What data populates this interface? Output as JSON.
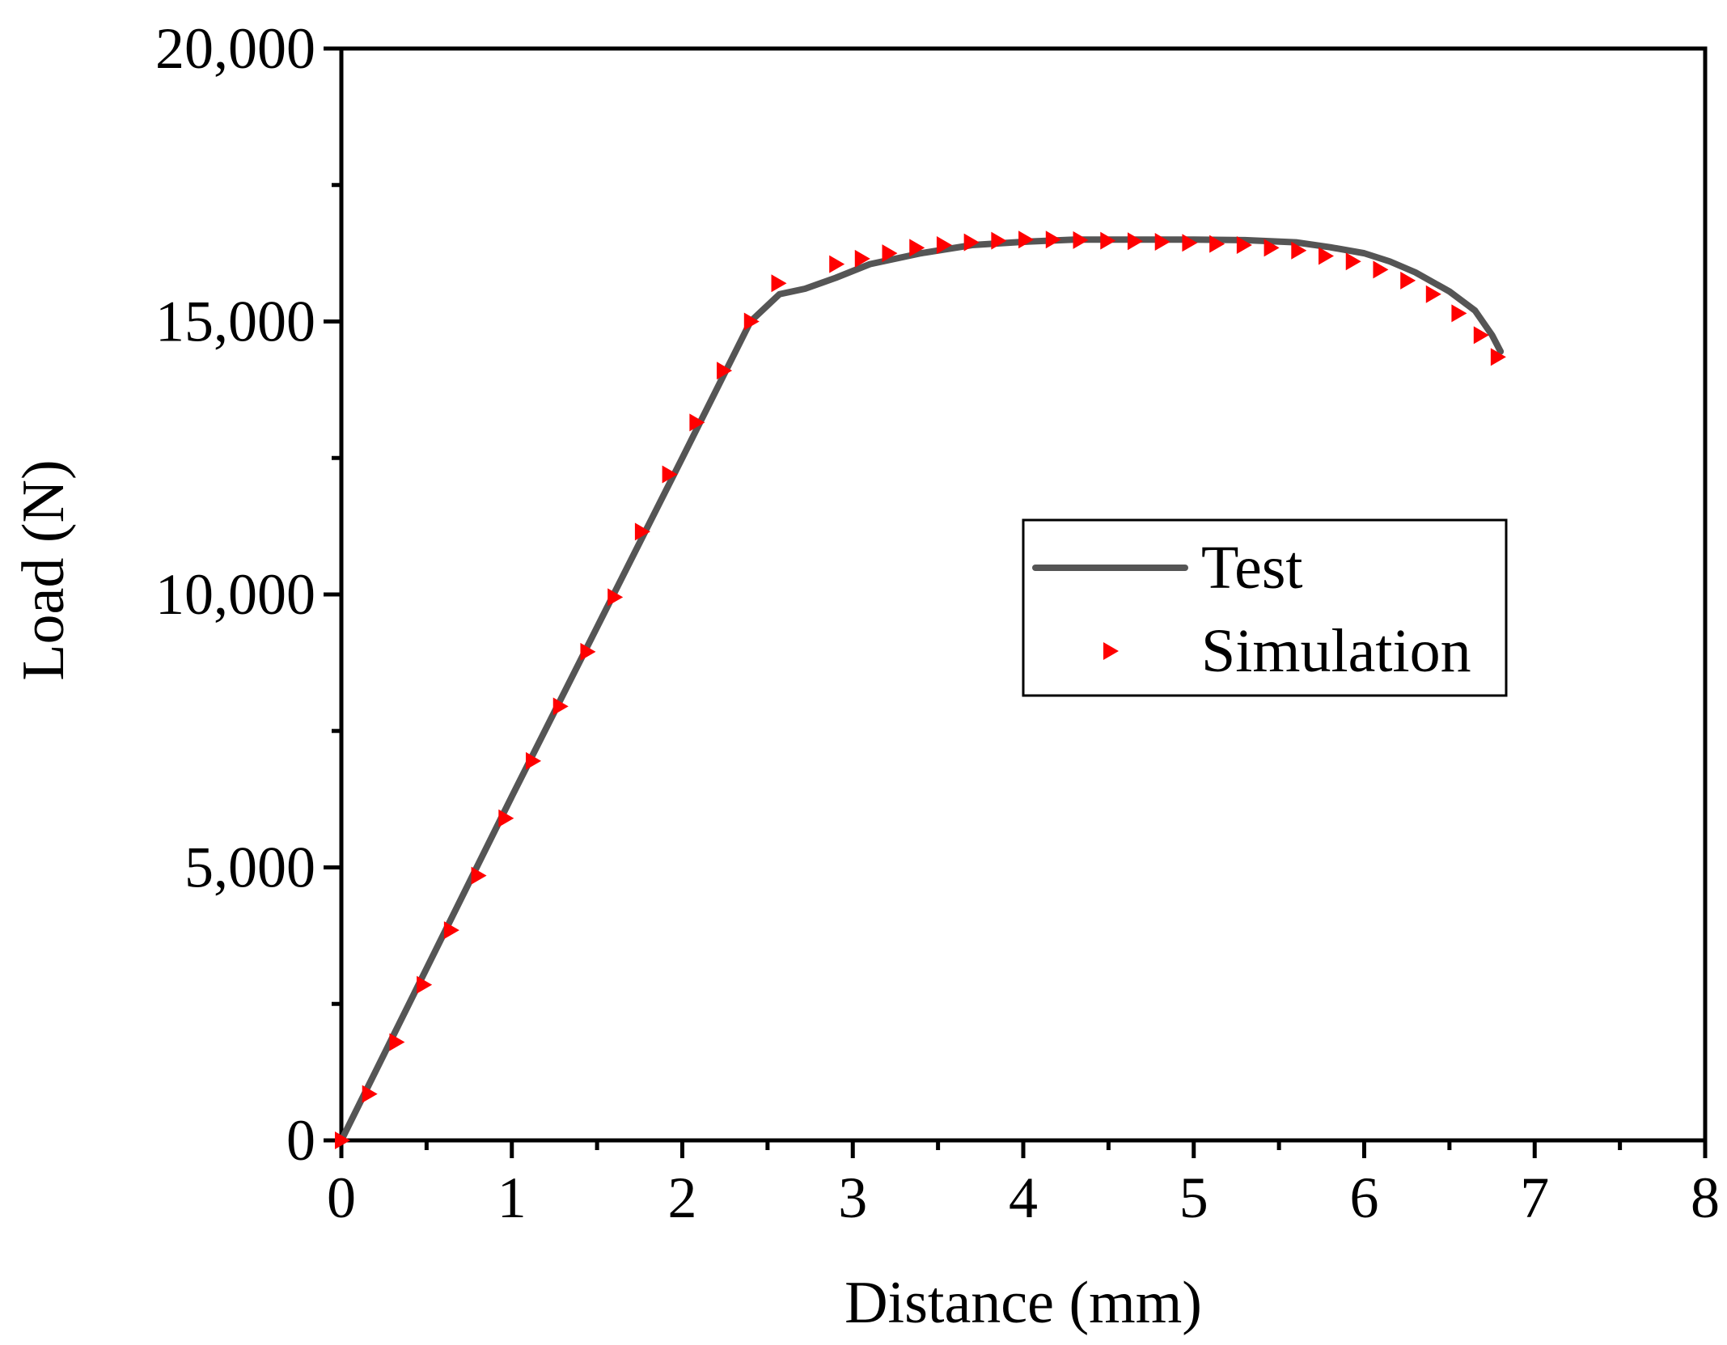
{
  "chart_data": {
    "type": "line",
    "title": "",
    "xlabel": "Distance (mm)",
    "ylabel": "Load (N)",
    "xlim": [
      0,
      8
    ],
    "ylim": [
      0,
      20000
    ],
    "xticks": [
      0,
      1,
      2,
      3,
      4,
      5,
      6,
      7,
      8
    ],
    "xtick_labels": [
      "0",
      "1",
      "2",
      "3",
      "4",
      "5",
      "6",
      "7",
      "8"
    ],
    "yticks": [
      0,
      5000,
      10000,
      15000,
      20000
    ],
    "ytick_labels": [
      "0",
      "5,000",
      "10,000",
      "15,000",
      "20,000"
    ],
    "grid": false,
    "legend_position": "center-right",
    "series": [
      {
        "name": "Test",
        "style": "line",
        "color": "#555555",
        "x": [
          0,
          0.5,
          1.0,
          1.5,
          2.0,
          2.4,
          2.57,
          2.72,
          2.9,
          3.1,
          3.4,
          3.7,
          4.0,
          4.3,
          4.6,
          5.0,
          5.3,
          5.6,
          5.8,
          6.0,
          6.15,
          6.3,
          6.5,
          6.65,
          6.75,
          6.8
        ],
        "y": [
          0,
          3150,
          6300,
          9400,
          12500,
          15000,
          15500,
          15600,
          15800,
          16050,
          16250,
          16400,
          16460,
          16500,
          16500,
          16500,
          16490,
          16450,
          16360,
          16250,
          16100,
          15900,
          15550,
          15200,
          14750,
          14450
        ]
      },
      {
        "name": "Simulation",
        "style": "markers",
        "marker": "triangle-right",
        "color": "#ff0000",
        "x": [
          0,
          0.16,
          0.32,
          0.48,
          0.64,
          0.8,
          0.96,
          1.12,
          1.28,
          1.44,
          1.6,
          1.76,
          1.92,
          2.08,
          2.24,
          2.4,
          2.56,
          2.9,
          3.05,
          3.21,
          3.37,
          3.53,
          3.69,
          3.85,
          4.01,
          4.17,
          4.33,
          4.49,
          4.65,
          4.81,
          4.97,
          5.13,
          5.29,
          5.45,
          5.61,
          5.77,
          5.93,
          6.09,
          6.25,
          6.4,
          6.55,
          6.68,
          6.78
        ],
        "y": [
          0,
          850,
          1800,
          2850,
          3850,
          4850,
          5900,
          6950,
          7950,
          8950,
          9950,
          11150,
          12200,
          13150,
          14100,
          15000,
          15700,
          16050,
          16150,
          16250,
          16350,
          16400,
          16450,
          16480,
          16500,
          16500,
          16490,
          16480,
          16470,
          16460,
          16440,
          16420,
          16400,
          16350,
          16300,
          16200,
          16100,
          15950,
          15750,
          15500,
          15150,
          14750,
          14350
        ]
      }
    ]
  }
}
